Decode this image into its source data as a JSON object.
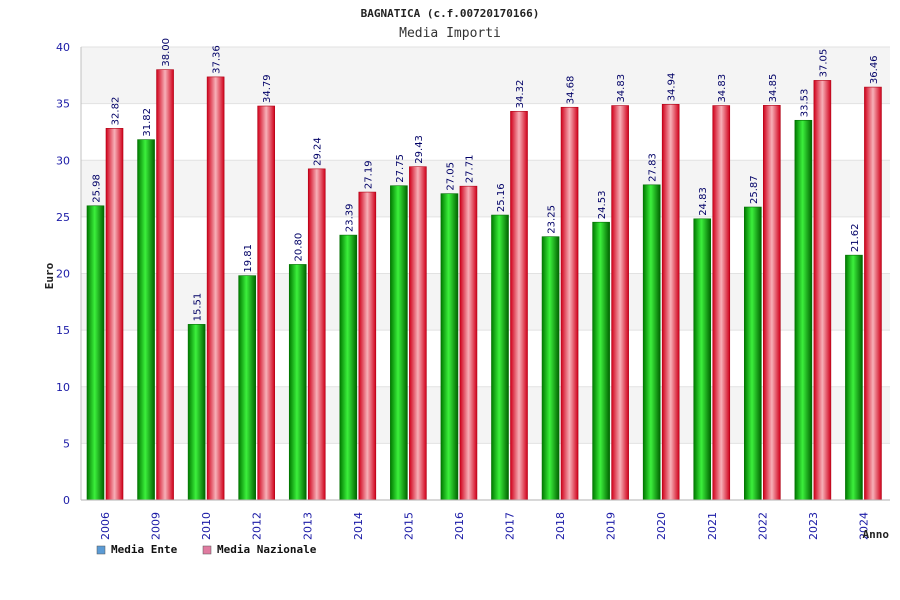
{
  "chart_data": {
    "type": "bar",
    "title": "BAGNATICA (c.f.00720170166)",
    "subtitle": "Media Importi",
    "xlabel": "Anno",
    "ylabel": "Euro",
    "ylim": [
      0,
      40
    ],
    "yticks": [
      "0",
      "5",
      "10",
      "15",
      "20",
      "25",
      "30",
      "35",
      "40"
    ],
    "grid": true,
    "legend_position": "bottom-left",
    "categories": [
      "2006",
      "2009",
      "2010",
      "2012",
      "2013",
      "2014",
      "2015",
      "2016",
      "2017",
      "2018",
      "2019",
      "2020",
      "2021",
      "2022",
      "2023",
      "2024"
    ],
    "series": [
      {
        "name": "Media Ente",
        "values": [
          25.98,
          31.82,
          15.51,
          19.81,
          20.8,
          23.39,
          27.75,
          27.05,
          25.16,
          23.25,
          24.53,
          27.83,
          24.83,
          25.87,
          33.53,
          21.62
        ],
        "labels": [
          "25.98",
          "31.82",
          "15.51",
          "19.81",
          "20.80",
          "23.39",
          "27.75",
          "27.05",
          "25.16",
          "23.25",
          "24.53",
          "27.83",
          "24.83",
          "25.87",
          "33.53",
          "21.62"
        ],
        "bar_color": "#00b000",
        "legend_color": "#5b9bd5"
      },
      {
        "name": "Media Nazionale",
        "values": [
          32.82,
          38.0,
          37.36,
          34.79,
          29.24,
          27.19,
          29.43,
          27.71,
          34.32,
          34.68,
          34.83,
          34.94,
          34.83,
          34.85,
          37.05,
          36.46
        ],
        "labels": [
          "32.82",
          "38.00",
          "37.36",
          "34.79",
          "29.24",
          "27.19",
          "29.43",
          "27.71",
          "34.32",
          "34.68",
          "34.83",
          "34.94",
          "34.83",
          "34.85",
          "37.05",
          "36.46"
        ],
        "bar_color": "#e8101c",
        "legend_color": "#e07ba0"
      }
    ]
  }
}
